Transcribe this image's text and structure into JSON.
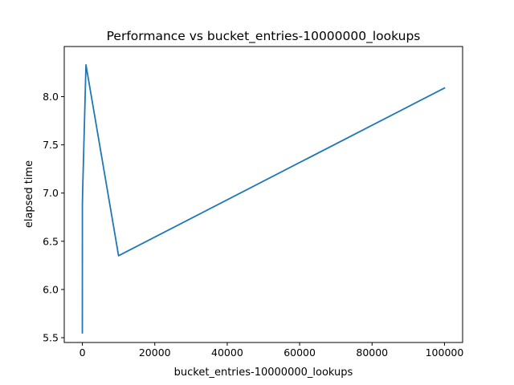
{
  "chart_data": {
    "type": "line",
    "title": "Performance vs bucket_entries-10000000_lookups",
    "xlabel": "bucket_entries-10000000_lookups",
    "ylabel": "elapsed time",
    "xlim": [
      -5000,
      105000
    ],
    "ylim": [
      5.45,
      8.52
    ],
    "xticks": [
      0,
      20000,
      40000,
      60000,
      80000,
      100000
    ],
    "yticks": [
      5.5,
      6.0,
      6.5,
      7.0,
      7.5,
      8.0
    ],
    "ytick_labels": [
      "5.5",
      "6.0",
      "6.5",
      "7.0",
      "7.5",
      "8.0"
    ],
    "grid": false,
    "series": [
      {
        "color": "#1f77b4",
        "x": [
          1,
          10,
          100,
          1000,
          10000,
          100000
        ],
        "y": [
          5.55,
          6.88,
          7.05,
          8.33,
          6.35,
          8.09
        ]
      }
    ]
  }
}
